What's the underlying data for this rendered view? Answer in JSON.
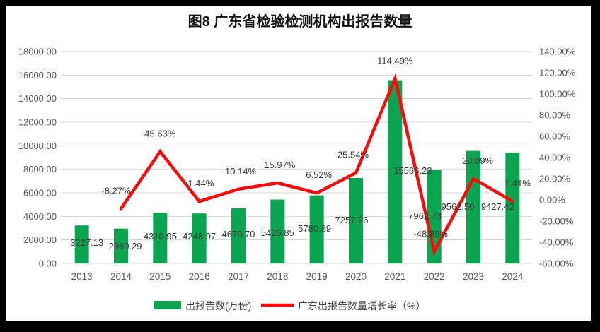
{
  "page": {
    "frame_color": "#000000",
    "panel_color": "#ffffff"
  },
  "title": {
    "text": "图8  广东省检验检测机构出报告数量"
  },
  "legend": {
    "items": [
      {
        "label": "出报告数(万份)",
        "swatch": "bar",
        "color": "#0ba551"
      },
      {
        "label": "广东出报告数量增长率（%）",
        "swatch": "line",
        "color": "#f90b0b"
      }
    ]
  },
  "chart_data": {
    "type": "bar+line",
    "categories": [
      "2013",
      "2014",
      "2015",
      "2016",
      "2017",
      "2018",
      "2019",
      "2020",
      "2021",
      "2022",
      "2023",
      "2024"
    ],
    "series": [
      {
        "name": "出报告数(万份)",
        "type": "bar",
        "axis": "left",
        "color": "#0ba551",
        "values": [
          3227.13,
          2960.29,
          4310.95,
          4248.97,
          4679.7,
          5426.85,
          5780.89,
          7257.26,
          15566.23,
          7962.73,
          9562.5,
          9427.42
        ],
        "data_labels": [
          "3227.13",
          "2960.29",
          "4310.95",
          "4248.97",
          "4679.70",
          "5426.85",
          "5780.89",
          "7257.26",
          "15566.23",
          "7962.73",
          "9562.50",
          "9427.42"
        ]
      },
      {
        "name": "广东出报告数量增长率（%）",
        "type": "line",
        "axis": "right",
        "color": "#f90b0b",
        "start_category_index": 1,
        "values": [
          -8.27,
          45.63,
          -1.44,
          10.14,
          15.97,
          6.52,
          25.54,
          114.49,
          -48.85,
          20.09,
          -1.41
        ],
        "data_labels": [
          "-8.27%",
          "45.63%",
          "-1.44%",
          "10.14%",
          "15.97%",
          "6.52%",
          "25.54%",
          "114.49%",
          "-48.85%",
          "20.09%",
          "-1.41%"
        ]
      }
    ],
    "left_axis": {
      "min": 0,
      "max": 18000,
      "step": 2000,
      "tick_labels": [
        "0.00",
        "2000.00",
        "4000.00",
        "6000.00",
        "8000.00",
        "10000.00",
        "12000.00",
        "14000.00",
        "16000.00",
        "18000.00"
      ]
    },
    "right_axis": {
      "min": -60,
      "max": 140,
      "step": 20,
      "tick_labels": [
        "-60.00%",
        "-40.00%",
        "-20.00%",
        "0.00%",
        "20.00%",
        "40.00%",
        "60.00%",
        "80.00%",
        "100.00%",
        "120.00%",
        "140.00%"
      ]
    },
    "grid": {
      "horizontal": true,
      "color": "#d9d9d9"
    },
    "legend_position": "bottom"
  }
}
